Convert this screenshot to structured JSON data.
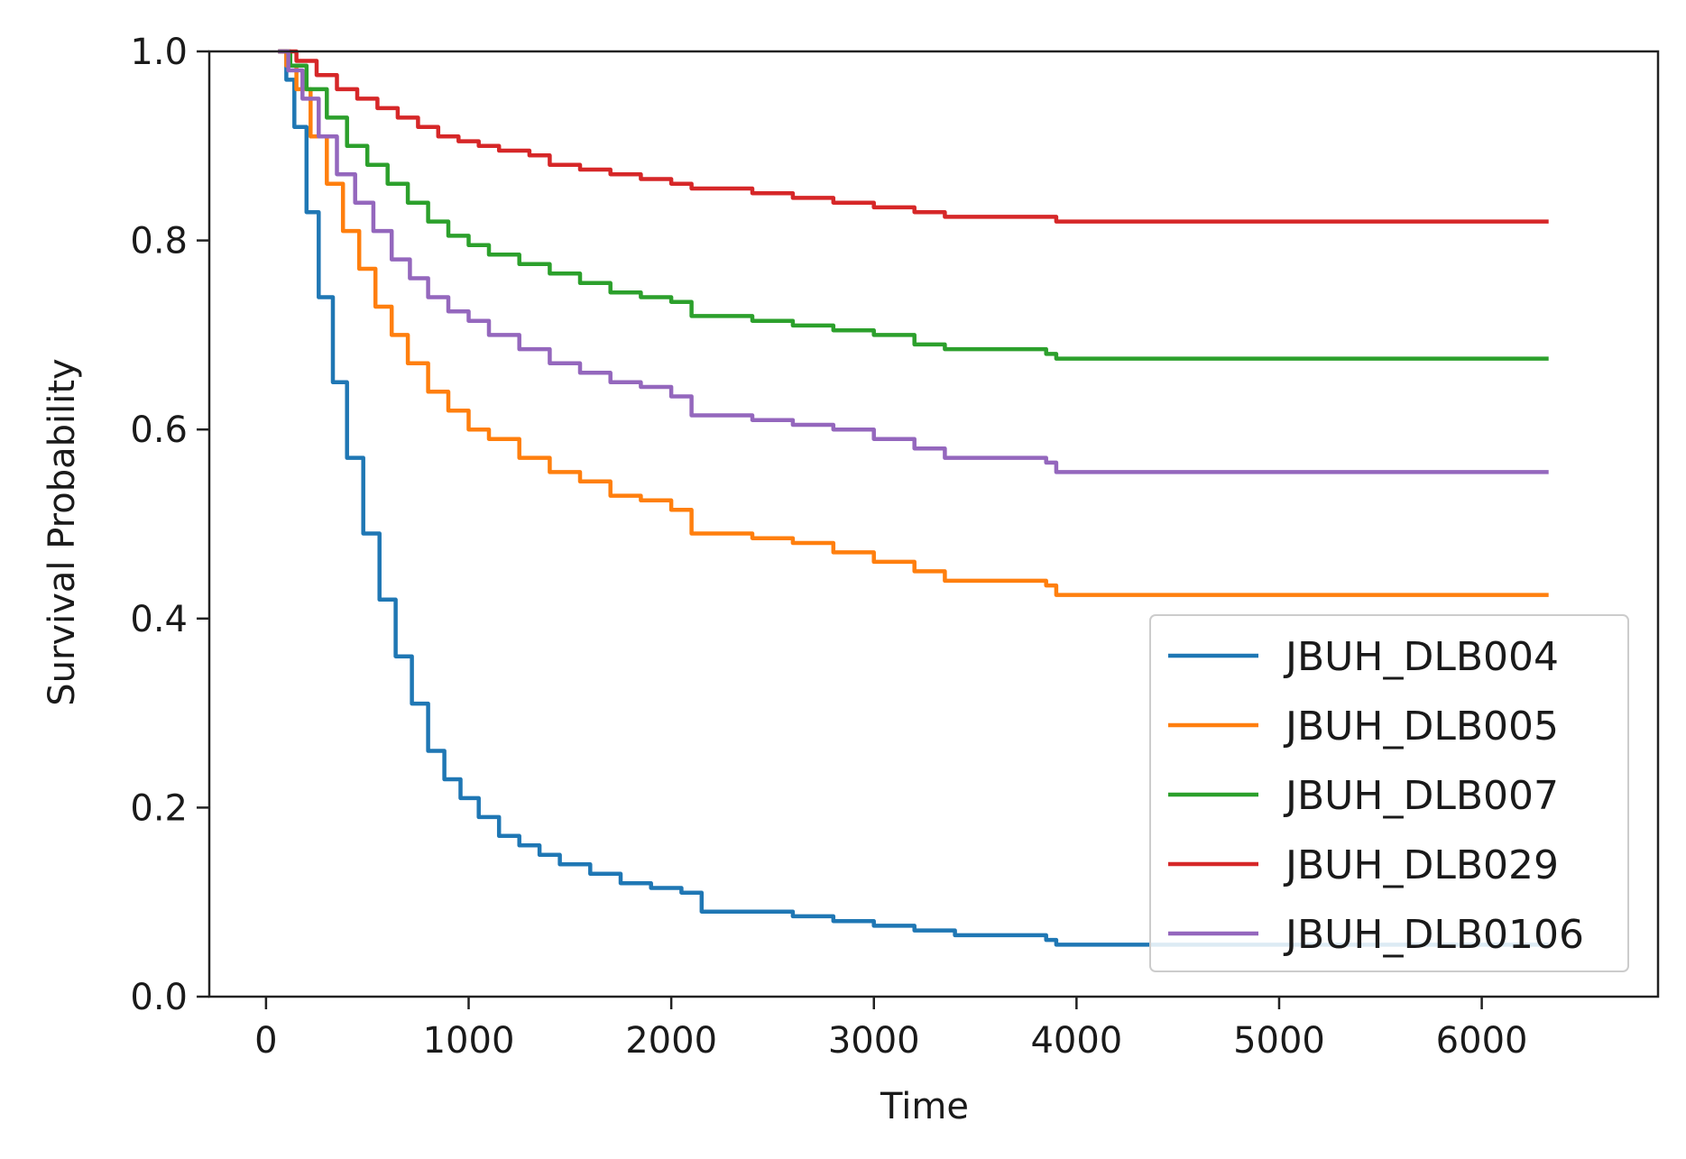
{
  "chart_data": {
    "type": "line",
    "title": "",
    "xlabel": "Time",
    "ylabel": "Survival Probability",
    "xlim": [
      -280,
      6870
    ],
    "ylim": [
      0,
      1.0
    ],
    "x_ticks": [
      0,
      1000,
      2000,
      3000,
      4000,
      5000,
      6000
    ],
    "x_tick_labels": [
      "0",
      "1000",
      "2000",
      "3000",
      "4000",
      "5000",
      "6000"
    ],
    "y_ticks": [
      0.0,
      0.2,
      0.4,
      0.6,
      0.8,
      1.0
    ],
    "y_tick_labels": [
      "0.0",
      "0.2",
      "0.4",
      "0.6",
      "0.8",
      "1.0"
    ],
    "grid": false,
    "legend_position": "lower right",
    "series": [
      {
        "name": "JBUH_DLB004",
        "color": "#1f77b4",
        "points": [
          [
            60,
            1.0
          ],
          [
            100,
            0.97
          ],
          [
            140,
            0.92
          ],
          [
            200,
            0.83
          ],
          [
            260,
            0.74
          ],
          [
            330,
            0.65
          ],
          [
            400,
            0.57
          ],
          [
            480,
            0.49
          ],
          [
            560,
            0.42
          ],
          [
            640,
            0.36
          ],
          [
            720,
            0.31
          ],
          [
            800,
            0.26
          ],
          [
            880,
            0.23
          ],
          [
            960,
            0.21
          ],
          [
            1050,
            0.19
          ],
          [
            1150,
            0.17
          ],
          [
            1250,
            0.16
          ],
          [
            1350,
            0.15
          ],
          [
            1450,
            0.14
          ],
          [
            1600,
            0.13
          ],
          [
            1750,
            0.12
          ],
          [
            1900,
            0.115
          ],
          [
            2050,
            0.11
          ],
          [
            2150,
            0.09
          ],
          [
            2400,
            0.09
          ],
          [
            2600,
            0.085
          ],
          [
            2800,
            0.08
          ],
          [
            3000,
            0.075
          ],
          [
            3200,
            0.07
          ],
          [
            3400,
            0.065
          ],
          [
            3850,
            0.06
          ],
          [
            3900,
            0.055
          ],
          [
            6330,
            0.055
          ]
        ]
      },
      {
        "name": "JBUH_DLB005",
        "color": "#ff7f0e",
        "points": [
          [
            60,
            1.0
          ],
          [
            100,
            0.985
          ],
          [
            150,
            0.96
          ],
          [
            220,
            0.91
          ],
          [
            300,
            0.86
          ],
          [
            380,
            0.81
          ],
          [
            460,
            0.77
          ],
          [
            540,
            0.73
          ],
          [
            620,
            0.7
          ],
          [
            700,
            0.67
          ],
          [
            800,
            0.64
          ],
          [
            900,
            0.62
          ],
          [
            1000,
            0.6
          ],
          [
            1100,
            0.59
          ],
          [
            1250,
            0.57
          ],
          [
            1400,
            0.555
          ],
          [
            1550,
            0.545
          ],
          [
            1700,
            0.53
          ],
          [
            1850,
            0.525
          ],
          [
            2000,
            0.515
          ],
          [
            2100,
            0.49
          ],
          [
            2400,
            0.485
          ],
          [
            2600,
            0.48
          ],
          [
            2800,
            0.47
          ],
          [
            3000,
            0.46
          ],
          [
            3200,
            0.45
          ],
          [
            3350,
            0.44
          ],
          [
            3850,
            0.435
          ],
          [
            3900,
            0.425
          ],
          [
            6330,
            0.425
          ]
        ]
      },
      {
        "name": "JBUH_DLB007",
        "color": "#2ca02c",
        "points": [
          [
            60,
            1.0
          ],
          [
            120,
            0.985
          ],
          [
            200,
            0.96
          ],
          [
            300,
            0.93
          ],
          [
            400,
            0.9
          ],
          [
            500,
            0.88
          ],
          [
            600,
            0.86
          ],
          [
            700,
            0.84
          ],
          [
            800,
            0.82
          ],
          [
            900,
            0.805
          ],
          [
            1000,
            0.795
          ],
          [
            1100,
            0.785
          ],
          [
            1250,
            0.775
          ],
          [
            1400,
            0.765
          ],
          [
            1550,
            0.755
          ],
          [
            1700,
            0.745
          ],
          [
            1850,
            0.74
          ],
          [
            2000,
            0.735
          ],
          [
            2100,
            0.72
          ],
          [
            2400,
            0.715
          ],
          [
            2600,
            0.71
          ],
          [
            2800,
            0.705
          ],
          [
            3000,
            0.7
          ],
          [
            3200,
            0.69
          ],
          [
            3350,
            0.685
          ],
          [
            3850,
            0.68
          ],
          [
            3900,
            0.675
          ],
          [
            6330,
            0.675
          ]
        ]
      },
      {
        "name": "JBUH_DLB029",
        "color": "#d62728",
        "points": [
          [
            60,
            1.0
          ],
          [
            150,
            0.99
          ],
          [
            250,
            0.975
          ],
          [
            350,
            0.96
          ],
          [
            450,
            0.95
          ],
          [
            550,
            0.94
          ],
          [
            650,
            0.93
          ],
          [
            750,
            0.92
          ],
          [
            850,
            0.91
          ],
          [
            950,
            0.905
          ],
          [
            1050,
            0.9
          ],
          [
            1150,
            0.895
          ],
          [
            1300,
            0.89
          ],
          [
            1400,
            0.88
          ],
          [
            1550,
            0.875
          ],
          [
            1700,
            0.87
          ],
          [
            1850,
            0.865
          ],
          [
            2000,
            0.86
          ],
          [
            2100,
            0.855
          ],
          [
            2400,
            0.85
          ],
          [
            2600,
            0.845
          ],
          [
            2800,
            0.84
          ],
          [
            3000,
            0.835
          ],
          [
            3200,
            0.83
          ],
          [
            3350,
            0.825
          ],
          [
            3850,
            0.825
          ],
          [
            3900,
            0.82
          ],
          [
            6330,
            0.82
          ]
        ]
      },
      {
        "name": "JBUH_DLB0106",
        "color": "#9467bd",
        "points": [
          [
            60,
            1.0
          ],
          [
            110,
            0.98
          ],
          [
            180,
            0.95
          ],
          [
            260,
            0.91
          ],
          [
            350,
            0.87
          ],
          [
            440,
            0.84
          ],
          [
            530,
            0.81
          ],
          [
            620,
            0.78
          ],
          [
            710,
            0.76
          ],
          [
            800,
            0.74
          ],
          [
            900,
            0.725
          ],
          [
            1000,
            0.715
          ],
          [
            1100,
            0.7
          ],
          [
            1250,
            0.685
          ],
          [
            1400,
            0.67
          ],
          [
            1550,
            0.66
          ],
          [
            1700,
            0.65
          ],
          [
            1850,
            0.645
          ],
          [
            2000,
            0.635
          ],
          [
            2100,
            0.615
          ],
          [
            2400,
            0.61
          ],
          [
            2600,
            0.605
          ],
          [
            2800,
            0.6
          ],
          [
            3000,
            0.59
          ],
          [
            3200,
            0.58
          ],
          [
            3350,
            0.57
          ],
          [
            3850,
            0.565
          ],
          [
            3900,
            0.555
          ],
          [
            6330,
            0.555
          ]
        ]
      }
    ]
  }
}
